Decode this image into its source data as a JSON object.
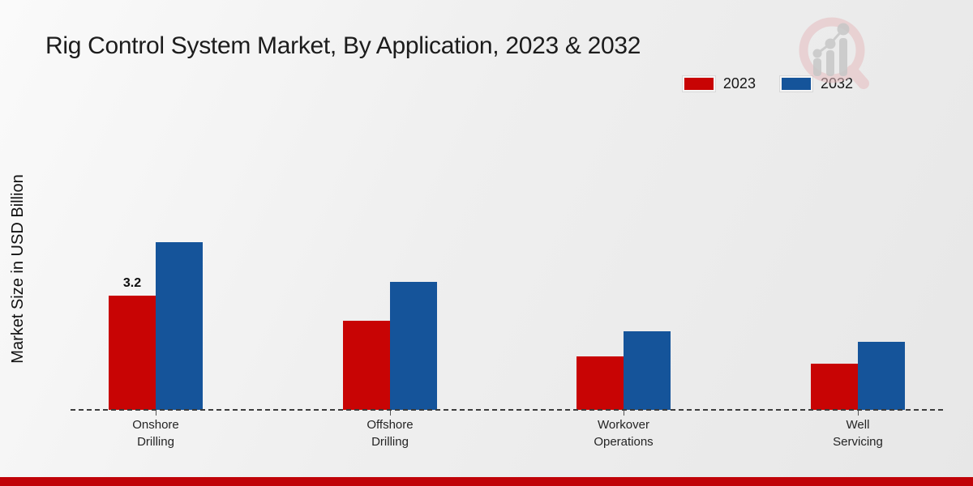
{
  "page": {
    "title": "Rig Control System Market, By Application, 2023 & 2032"
  },
  "chart_data": {
    "type": "bar",
    "title": "Rig Control System Market, By Application, 2023 & 2032",
    "xlabel": "",
    "ylabel": "Market Size in USD Billion",
    "categories": [
      "Onshore Drilling",
      "Offshore Drilling",
      "Workover Operations",
      "Well Servicing"
    ],
    "category_labels_two_line": [
      "Onshore\nDrilling",
      "Offshore\nDrilling",
      "Workover\nOperations",
      "Well\nServicing"
    ],
    "series": [
      {
        "name": "2023",
        "color": "#c80404",
        "values": [
          3.2,
          2.5,
          1.5,
          1.3
        ]
      },
      {
        "name": "2032",
        "color": "#15549a",
        "values": [
          4.7,
          3.6,
          2.2,
          1.9
        ]
      }
    ],
    "annotations": [
      {
        "series": "2023",
        "category_index": 0,
        "label": "3.2"
      }
    ],
    "legend_position": "top-right",
    "axis_style": "dashed-baseline-only",
    "grid": false,
    "ylim": [
      0,
      5
    ],
    "unit": "USD Billion"
  },
  "branding": {
    "watermark_icon": "magnifier-bar-chart-logo",
    "footer_bar_color": "#c00308",
    "watermark_ring_color": "#e6bcbf",
    "watermark_bar_color": "#c7c7c7"
  }
}
